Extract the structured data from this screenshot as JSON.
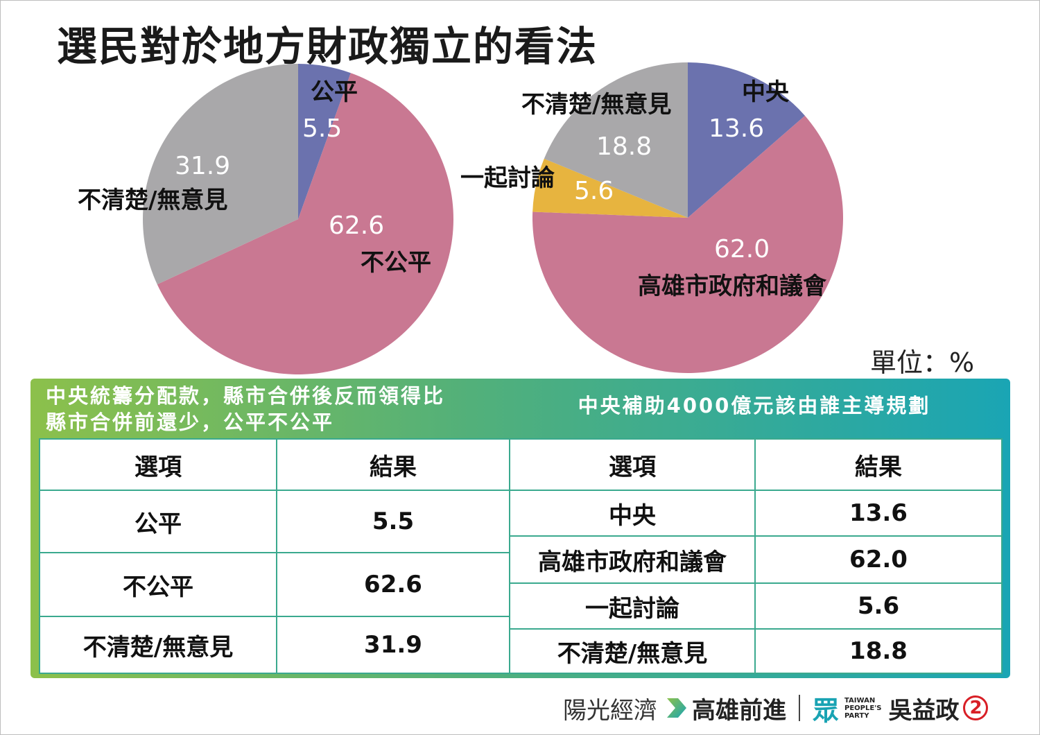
{
  "title": "選民對於地方財政獨立的看法",
  "unit": "單位：%",
  "colors": {
    "blue": "#6b72ae",
    "pink": "#c97892",
    "gray": "#a9a8aa",
    "yellow": "#e7b43f",
    "teal": "#1aa5b4",
    "green": "#8cc04b"
  },
  "chart_data": [
    {
      "type": "pie",
      "slices": [
        {
          "label": "公平",
          "value": 5.5,
          "display": "5.5",
          "color": "#6b72ae"
        },
        {
          "label": "不公平",
          "value": 62.6,
          "display": "62.6",
          "color": "#c97892"
        },
        {
          "label": "不清楚/無意見",
          "value": 31.9,
          "display": "31.9",
          "color": "#a9a8aa"
        }
      ]
    },
    {
      "type": "pie",
      "slices": [
        {
          "label": "中央",
          "value": 13.6,
          "display": "13.6",
          "color": "#6b72ae"
        },
        {
          "label": "高雄市政府和議會",
          "value": 62.0,
          "display": "62.0",
          "color": "#c97892"
        },
        {
          "label": "一起討論",
          "value": 5.6,
          "display": "5.6",
          "color": "#e7b43f"
        },
        {
          "label": "不清楚/無意見",
          "value": 18.8,
          "display": "18.8",
          "color": "#a9a8aa"
        }
      ]
    }
  ],
  "tables": {
    "left": {
      "header": [
        "中央統籌分配款，縣市合併後反而領得比",
        "縣市合併前還少，公平不公平"
      ],
      "columns": [
        "選項",
        "結果"
      ],
      "rows": [
        [
          "公平",
          "5.5"
        ],
        [
          "不公平",
          "62.6"
        ],
        [
          "不清楚/無意見",
          "31.9"
        ]
      ]
    },
    "right": {
      "header": "中央補助4000億元該由誰主導規劃",
      "columns": [
        "選項",
        "結果"
      ],
      "rows": [
        [
          "中央",
          "13.6"
        ],
        [
          "高雄市政府和議會",
          "62.0"
        ],
        [
          "一起討論",
          "5.6"
        ],
        [
          "不清楚/無意見",
          "18.8"
        ]
      ]
    }
  },
  "footer": {
    "slogan": "陽光經濟",
    "slogan2": "高雄前進",
    "logo_glyph": "眾",
    "party": [
      "TAIWAN",
      "PEOPLE'S",
      "PARTY"
    ],
    "candidate": "吳益政",
    "number": "2",
    "arrow_icon": "chevron-right-icon"
  }
}
